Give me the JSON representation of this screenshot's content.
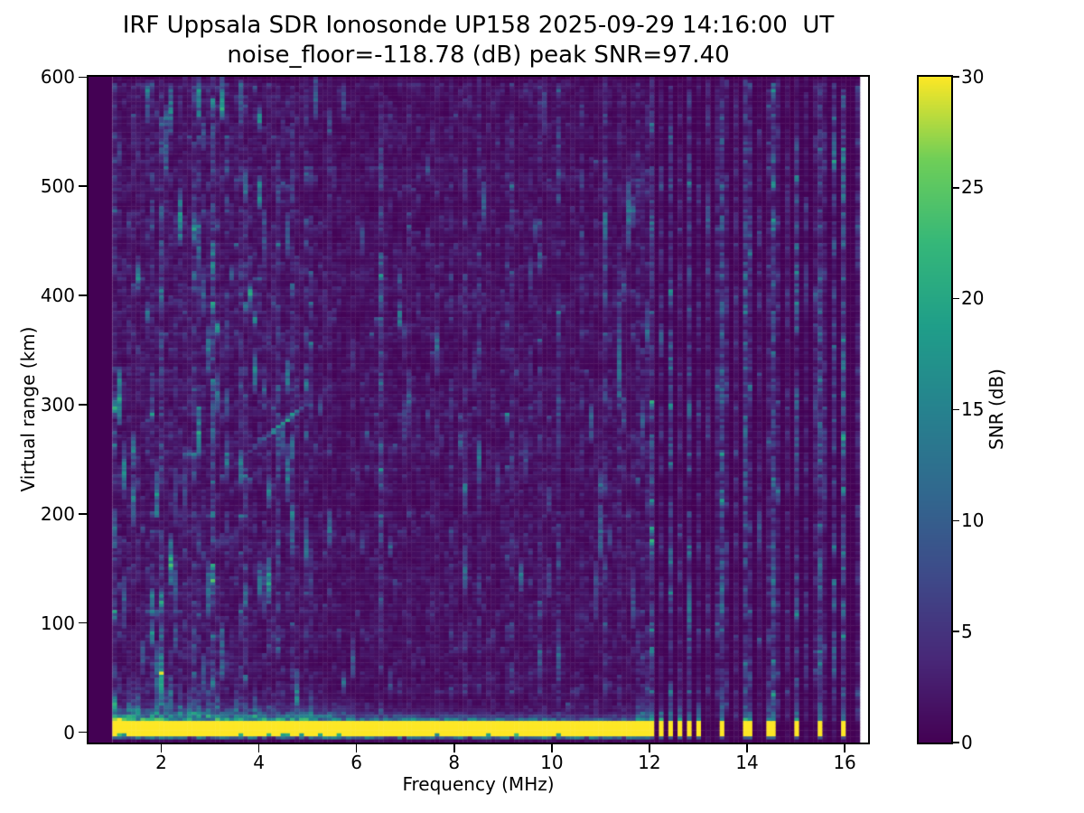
{
  "figure": {
    "title_line1": "IRF Uppsala SDR Ionosonde UP158 2025-09-29 14:16:00  UT",
    "title_line2": "noise_floor=-118.78 (dB) peak SNR=97.40"
  },
  "chart_data": {
    "type": "heatmap",
    "title": "IRF Uppsala SDR Ionosonde UP158 2025-09-29 14:16:00  UT",
    "subtitle": "noise_floor=-118.78 (dB) peak SNR=97.40",
    "station": "UP158",
    "timestamp_ut": "2025-09-29 14:16:00",
    "noise_floor_db": -118.78,
    "peak_snr_db": 97.4,
    "xlabel": "Frequency (MHz)",
    "ylabel": "Virtual range (km)",
    "xlim": [
      0.51,
      16.48
    ],
    "ylim": [
      -9.5,
      600.3
    ],
    "xticks": [
      2,
      4,
      6,
      8,
      10,
      12,
      14,
      16
    ],
    "yticks": [
      0,
      100,
      200,
      300,
      400,
      500,
      600
    ],
    "grid": false,
    "legend": null,
    "colorbar": {
      "label": "SNR (dB)",
      "min": 0,
      "max": 30,
      "ticks": [
        0,
        5,
        10,
        15,
        20,
        25,
        30
      ],
      "colormap": "viridis",
      "position": "right"
    },
    "data": {
      "freq_start_mhz": 1.0,
      "freq_end_mhz": 16.31,
      "n_freq_cells": 160,
      "n_range_cells": 216,
      "ground_pulse_band": {
        "freq_range_mhz": [
          1.0,
          11.69
        ],
        "range_km": [
          -2.5,
          11.5
        ],
        "snr_db": 30
      },
      "below_band_echo": {
        "freq_range_mhz": [
          1.0,
          11.69
        ],
        "range_km": [
          -6.5,
          -2.5
        ],
        "snr_db": 12
      },
      "stepped_pulse_bars_mhz": [
        11.82,
        12.02,
        12.22,
        12.42,
        12.62,
        12.82,
        13.02,
        13.5,
        14.0,
        14.5,
        15.0,
        15.5,
        16.0
      ],
      "active_column_ladder": {
        "start_mhz": 11.82,
        "spacing_mhz": 0.2
      },
      "echo_trace": {
        "freq_range_mhz": [
          3.42,
          5.02
        ],
        "range_start_km": 243,
        "slope_km_per_mhz": 37,
        "peak_snr_db": 19
      },
      "noise_speckle": {
        "dense_region_mhz": [
          1.0,
          4.8
        ],
        "sparse_region_mhz": [
          4.8,
          11.7
        ],
        "range_span_km": [
          20,
          600
        ]
      },
      "rfi_lines": [
        {
          "f": 1.05,
          "s": 1.8
        },
        {
          "f": 2.78,
          "s": 1.7
        },
        {
          "f": 3.08,
          "s": 1.5
        },
        {
          "f": 3.62,
          "s": 1.5
        },
        {
          "f": 4.95,
          "s": 1.9
        },
        {
          "f": 6.52,
          "s": 3.0
        },
        {
          "f": 7.05,
          "s": 1.5
        },
        {
          "f": 7.62,
          "s": 1.4
        },
        {
          "f": 8.22,
          "s": 1.8
        },
        {
          "f": 9.05,
          "s": 1.6
        },
        {
          "f": 9.55,
          "s": 1.5
        },
        {
          "f": 10.12,
          "s": 1.6
        },
        {
          "f": 10.65,
          "s": 1.5
        },
        {
          "f": 11.05,
          "s": 1.7
        },
        {
          "f": 11.35,
          "s": 1.6
        },
        {
          "f": 12.02,
          "s": 2.2
        },
        {
          "f": 12.42,
          "s": 2.0
        },
        {
          "f": 12.82,
          "s": 2.0
        },
        {
          "f": 13.5,
          "s": 2.4
        },
        {
          "f": 14.0,
          "s": 2.4
        },
        {
          "f": 14.5,
          "s": 2.4
        },
        {
          "f": 15.0,
          "s": 2.2
        },
        {
          "f": 15.5,
          "s": 2.2
        },
        {
          "f": 16.0,
          "s": 2.4
        }
      ]
    }
  },
  "colors": {
    "figure_background": "#ffffff",
    "axes": "#000000",
    "cmap_min": "#440154",
    "cmap_max": "#fde725"
  }
}
